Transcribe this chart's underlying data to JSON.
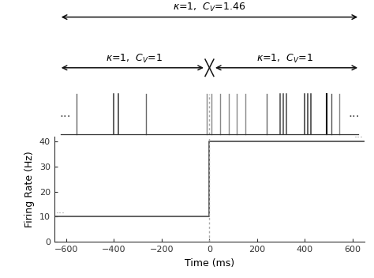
{
  "arrow1_label": "$\\kappa$=1,  $C_V$=1.46",
  "arrow2_left_label": "$\\kappa$=1,  $C_V$=1",
  "arrow2_right_label": "$\\kappa$=1,  $C_V$=1",
  "spike_times_left": [
    -555,
    -400,
    -383,
    -265,
    -12
  ],
  "spike_times_right": [
    8,
    45,
    80,
    115,
    150,
    240,
    295,
    308,
    322,
    400,
    412,
    425,
    490,
    510,
    545
  ],
  "spike_colors_left": [
    "#666666",
    "#444444",
    "#444444",
    "#666666",
    "#888888"
  ],
  "spike_colors_right": [
    "#888888",
    "#888888",
    "#888888",
    "#888888",
    "#888888",
    "#666666",
    "#555555",
    "#555555",
    "#555555",
    "#444444",
    "#444444",
    "#444444",
    "#000000",
    "#555555",
    "#888888"
  ],
  "spike_widths_left": [
    1.0,
    1.2,
    1.2,
    1.0,
    1.0
  ],
  "spike_widths_right": [
    1.0,
    1.0,
    1.0,
    1.0,
    1.0,
    1.0,
    1.2,
    1.2,
    1.2,
    1.2,
    1.2,
    1.2,
    1.5,
    1.0,
    1.0
  ],
  "rate_low": 10,
  "rate_high": 40,
  "rate_step_time": 0,
  "xlim": [
    -650,
    650
  ],
  "ylim_rate": [
    0,
    42
  ],
  "yticks_rate": [
    0,
    10,
    20,
    30,
    40
  ],
  "xticks": [
    -600,
    -400,
    -200,
    0,
    200,
    400,
    600
  ],
  "xlabel": "Time (ms)",
  "ylabel": "Firing Rate (Hz)",
  "bg_color": "#ffffff",
  "line_color": "#555555",
  "dotted_line_color": "#aaaaaa",
  "arrow_color": "#111111",
  "spike_color_uniform": "#555555"
}
